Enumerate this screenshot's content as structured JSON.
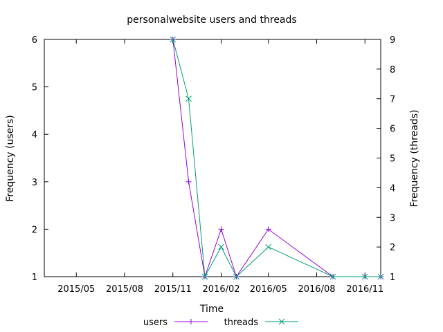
{
  "chart_data": {
    "type": "line",
    "title": "personalwebsite users and threads",
    "xlabel": "Time",
    "ylabel": "Frequency (users)",
    "y2label": "Frequency (threads)",
    "xlim": [
      "2015-03-01",
      "2016-12-01"
    ],
    "ylim": [
      1,
      6
    ],
    "y2lim": [
      1,
      9
    ],
    "grid": false,
    "legend_position": "bottom",
    "x_ticks": [
      {
        "date": "2015-05-01",
        "label": "2015/05"
      },
      {
        "date": "2015-08-01",
        "label": "2015/08"
      },
      {
        "date": "2015-11-01",
        "label": "2015/11"
      },
      {
        "date": "2016-02-01",
        "label": "2016/02"
      },
      {
        "date": "2016-05-01",
        "label": "2016/05"
      },
      {
        "date": "2016-08-01",
        "label": "2016/08"
      },
      {
        "date": "2016-11-01",
        "label": "2016/11"
      }
    ],
    "y_ticks": [
      1,
      2,
      3,
      4,
      5,
      6
    ],
    "y2_ticks": [
      1,
      2,
      3,
      4,
      5,
      6,
      7,
      8,
      9
    ],
    "series": [
      {
        "name": "users",
        "axis": "y",
        "color": "#9400d3",
        "marker": "+",
        "x": [
          "2015-11-01",
          "2015-12-01",
          "2016-01-01",
          "2016-02-01",
          "2016-03-01",
          "2016-05-01",
          "2016-09-01",
          "2016-11-01",
          "2016-12-01"
        ],
        "values": [
          6,
          3,
          1,
          2,
          1,
          2,
          1,
          1,
          1
        ]
      },
      {
        "name": "threads",
        "axis": "y2",
        "color": "#009e73",
        "marker": "x",
        "x": [
          "2015-11-01",
          "2015-12-01",
          "2016-01-01",
          "2016-02-01",
          "2016-03-01",
          "2016-05-01",
          "2016-09-01",
          "2016-11-01",
          "2016-12-01"
        ],
        "values": [
          9,
          7,
          1,
          2,
          1,
          2,
          1,
          1,
          1
        ]
      }
    ]
  }
}
